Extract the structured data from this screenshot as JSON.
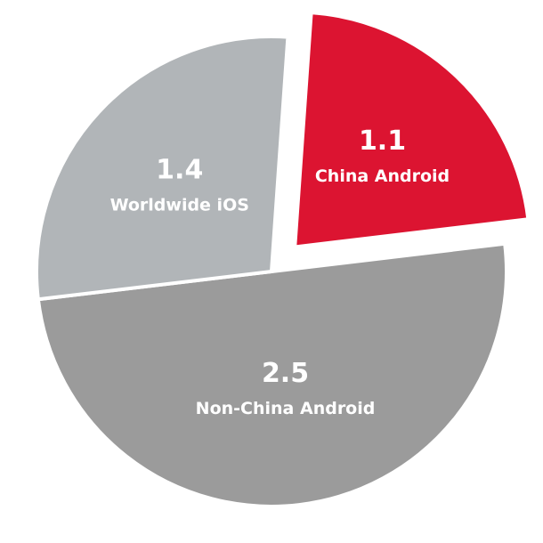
{
  "chart_data": {
    "type": "pie",
    "title": "",
    "slices": [
      {
        "label": "China Android",
        "value": 1.1,
        "value_text": "1.1",
        "color": "#dc1431",
        "exploded": true
      },
      {
        "label": "Non-China Android",
        "value": 2.5,
        "value_text": "2.5",
        "color": "#9b9b9b",
        "exploded": false
      },
      {
        "label": "Worldwide iOS",
        "value": 1.4,
        "value_text": "1.4",
        "color": "#b1b5b8",
        "exploded": false
      }
    ],
    "legend": "none"
  }
}
